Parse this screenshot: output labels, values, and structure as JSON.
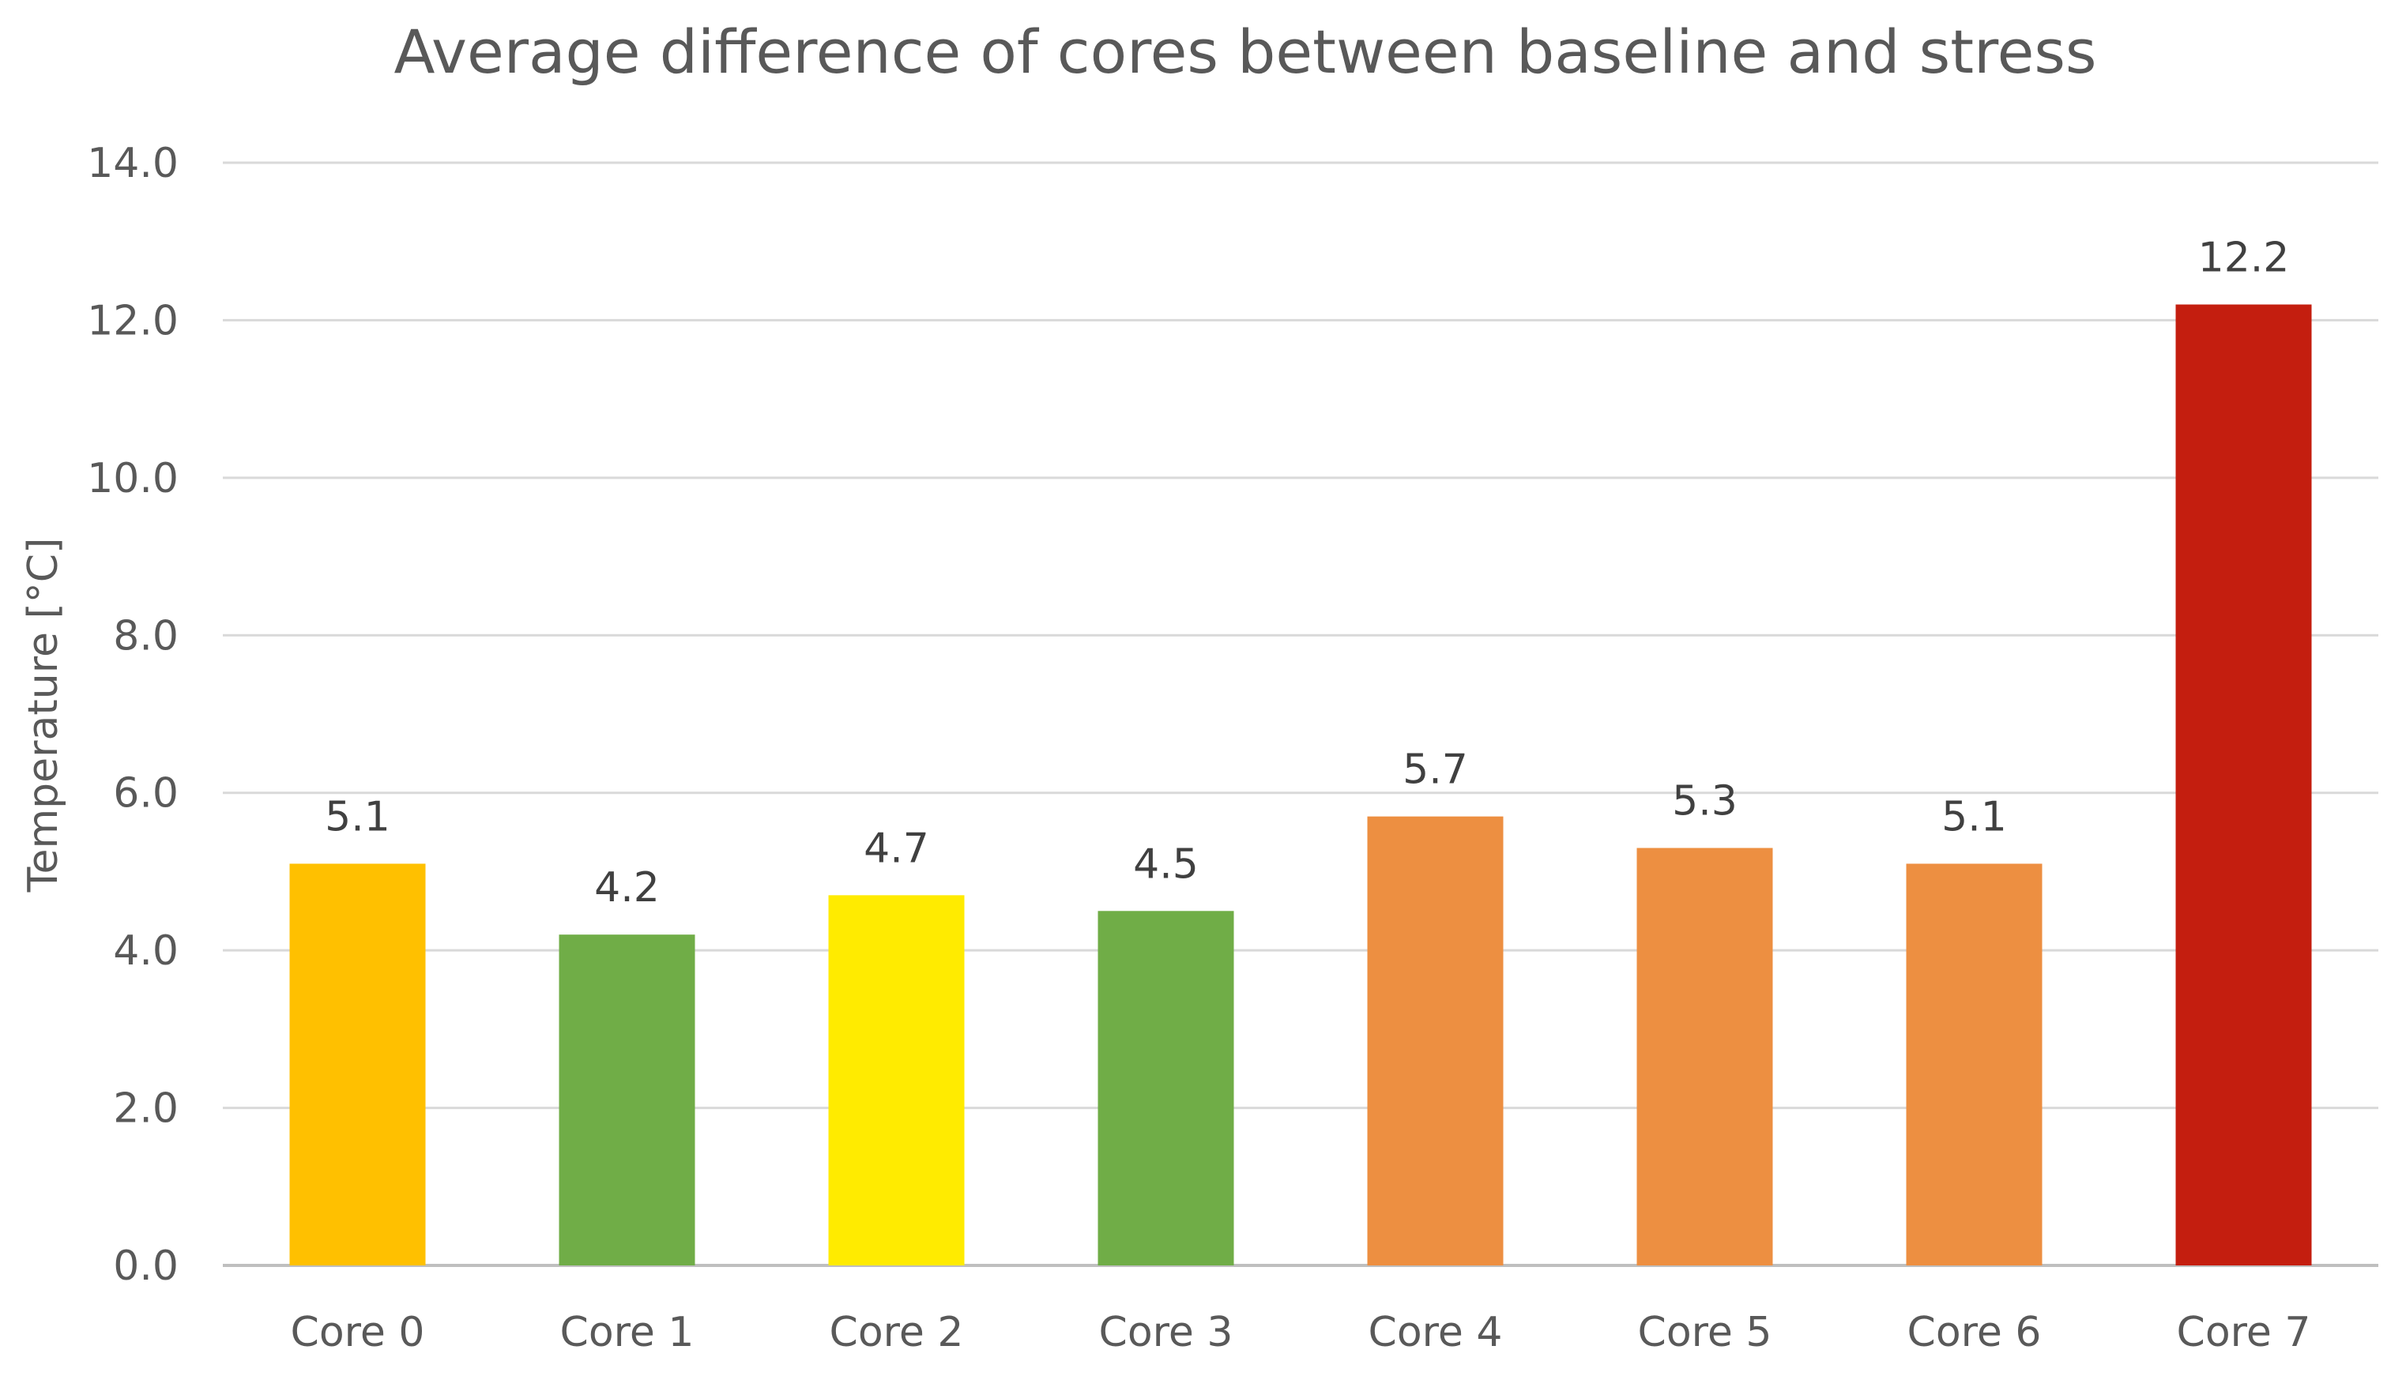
{
  "chart_data": {
    "type": "bar",
    "title": "Average difference of cores between baseline and stress",
    "xlabel": "",
    "ylabel": "Temperature [°C]",
    "ylim": [
      0,
      14
    ],
    "y_ticks": [
      "0.0",
      "2.0",
      "4.0",
      "6.0",
      "8.0",
      "10.0",
      "12.0",
      "14.0"
    ],
    "grid": true,
    "legend": "none",
    "categories": [
      "Core 0",
      "Core 1",
      "Core 2",
      "Core 3",
      "Core 4",
      "Core 5",
      "Core 6",
      "Core 7"
    ],
    "values": [
      5.1,
      4.2,
      4.7,
      4.5,
      5.7,
      5.3,
      5.1,
      12.2
    ],
    "data_labels": [
      "5.1",
      "4.2",
      "4.7",
      "4.5",
      "5.7",
      "5.3",
      "5.1",
      "12.2"
    ],
    "bar_colors": [
      "#FFC000",
      "#70AD47",
      "#FFEB00",
      "#70AD47",
      "#ED8F41",
      "#ED8F41",
      "#ED8F41",
      "#C41E0F"
    ]
  }
}
